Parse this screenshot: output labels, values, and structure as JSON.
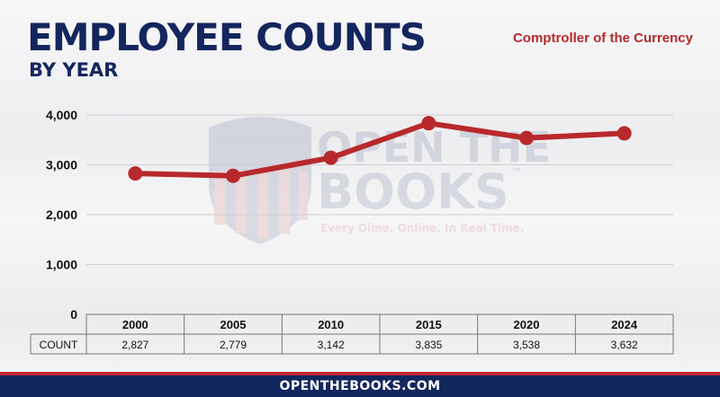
{
  "header": {
    "title": "EMPLOYEE COUNTS",
    "subtitle": "BY YEAR",
    "agency": "Comptroller of the Currency"
  },
  "watermark": {
    "line1": "OPEN THE",
    "line2": "BOOKS",
    "tm": "™",
    "tagline": "Every Dime. Online. In Real Time."
  },
  "footer": {
    "text": "OPENTHEBOOKS.COM"
  },
  "colors": {
    "navy": "#14265e",
    "red": "#b42a2a",
    "line": "#b9292c"
  },
  "chart_data": {
    "type": "line",
    "categories": [
      "2000",
      "2005",
      "2010",
      "2015",
      "2020",
      "2024"
    ],
    "series": [
      {
        "name": "COUNT",
        "values": [
          2827,
          2779,
          3142,
          3835,
          3538,
          3632
        ]
      }
    ],
    "value_labels": [
      "2,827",
      "2,779",
      "3,142",
      "3,835",
      "3,538",
      "3,632"
    ],
    "row_label": "COUNT",
    "y_ticks": [
      {
        "value": 0,
        "label": "0"
      },
      {
        "value": 1000,
        "label": "1,000"
      },
      {
        "value": 2000,
        "label": "2,000"
      },
      {
        "value": 3000,
        "label": "3,000"
      },
      {
        "value": 4000,
        "label": "4,000"
      }
    ],
    "ylim": [
      0,
      4000
    ],
    "grid": true,
    "legend": "none"
  }
}
